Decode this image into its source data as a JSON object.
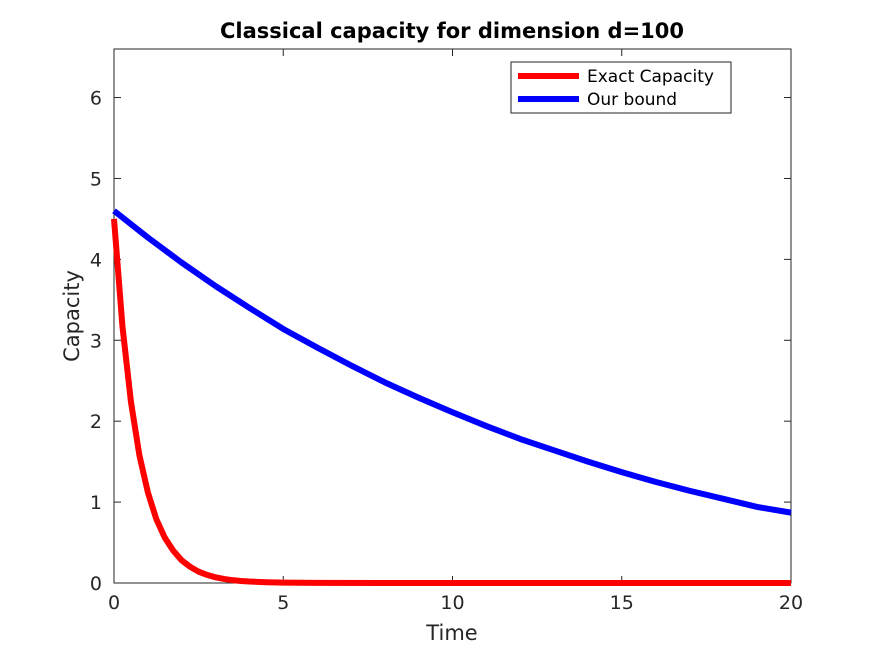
{
  "chart_data": {
    "type": "line",
    "title": "Classical capacity for dimension d=100",
    "xlabel": "Time",
    "ylabel": "Capacity",
    "xlim": [
      0,
      20
    ],
    "ylim": [
      0,
      6.6
    ],
    "xticks": [
      0,
      5,
      10,
      15,
      20
    ],
    "yticks": [
      0,
      1,
      2,
      3,
      4,
      5,
      6
    ],
    "xtick_labels": [
      "0",
      "5",
      "10",
      "15",
      "20"
    ],
    "ytick_labels": [
      "0",
      "1",
      "2",
      "3",
      "4",
      "5",
      "6"
    ],
    "grid": false,
    "legend_position": "top-right",
    "series": [
      {
        "name": "Exact Capacity",
        "color": "#ff0000",
        "x": [
          0,
          0.25,
          0.5,
          0.75,
          1.0,
          1.25,
          1.5,
          1.75,
          2.0,
          2.25,
          2.5,
          2.75,
          3.0,
          3.25,
          3.5,
          3.75,
          4.0,
          4.5,
          5,
          6,
          8,
          10,
          12,
          14,
          16,
          18,
          20
        ],
        "y": [
          4.5,
          3.17,
          2.24,
          1.58,
          1.12,
          0.79,
          0.56,
          0.4,
          0.28,
          0.2,
          0.14,
          0.1,
          0.07,
          0.05,
          0.035,
          0.025,
          0.018,
          0.009,
          0.004,
          0.001,
          0,
          0,
          0,
          0,
          0,
          0,
          0
        ]
      },
      {
        "name": "Our bound",
        "color": "#0000ff",
        "x": [
          0,
          1,
          2,
          3,
          4,
          5,
          6,
          7,
          8,
          9,
          10,
          11,
          12,
          13,
          14,
          15,
          16,
          17,
          18,
          19,
          20
        ],
        "y": [
          4.6,
          4.27,
          3.96,
          3.67,
          3.4,
          3.14,
          2.91,
          2.69,
          2.48,
          2.29,
          2.11,
          1.94,
          1.78,
          1.64,
          1.5,
          1.37,
          1.25,
          1.14,
          1.04,
          0.94,
          0.87
        ]
      }
    ]
  }
}
